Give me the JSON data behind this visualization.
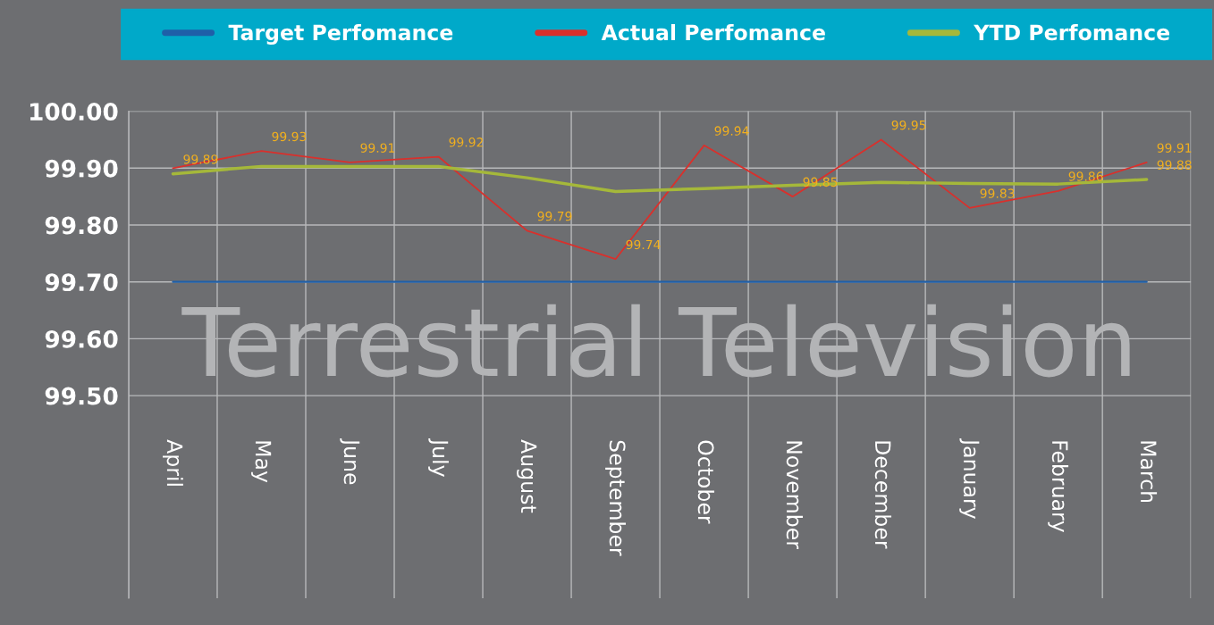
{
  "chart_data": {
    "type": "line",
    "title": "Terrestrial Television",
    "categories": [
      "April",
      "May",
      "June",
      "July",
      "August",
      "September",
      "October",
      "November",
      "December",
      "January",
      "February",
      "March"
    ],
    "series": [
      {
        "name": "Target Perfomance",
        "color": "#1f5fa8",
        "values": [
          99.7,
          99.7,
          99.7,
          99.7,
          99.7,
          99.7,
          99.7,
          99.7,
          99.7,
          99.7,
          99.7,
          99.7
        ]
      },
      {
        "name": "Actual Perfomance",
        "color": "#d9302c",
        "values": [
          99.9,
          99.93,
          99.91,
          99.92,
          99.79,
          99.74,
          99.94,
          99.85,
          99.95,
          99.83,
          99.86,
          99.91
        ],
        "value_labels": [
          null,
          "99.93",
          "99.91",
          "99.92",
          "99.79",
          "99.74",
          "99.94",
          "99.85",
          "99.95",
          "99.83",
          "99.86",
          "99.91"
        ]
      },
      {
        "name": "YTD Perfomance",
        "color": "#a5b83a",
        "values": [
          99.89,
          99.903,
          99.903,
          99.903,
          99.883,
          99.859,
          99.864,
          99.87,
          99.875,
          99.873,
          99.872,
          99.88
        ],
        "value_labels": [
          "99.89",
          null,
          null,
          null,
          null,
          null,
          null,
          null,
          null,
          null,
          null,
          "99.88"
        ]
      }
    ],
    "ylim": [
      99.144,
      100.0
    ],
    "yticks": [
      {
        "value": 99.5,
        "label": "99.50"
      },
      {
        "value": 99.6,
        "label": "99.60"
      },
      {
        "value": 99.7,
        "label": "99.70"
      },
      {
        "value": 99.8,
        "label": "99.80"
      },
      {
        "value": 99.9,
        "label": "99.90"
      },
      {
        "value": 100.0,
        "label": "100.00"
      }
    ],
    "grid": true,
    "legend": "top",
    "marker": "none",
    "line_style": "solid"
  }
}
